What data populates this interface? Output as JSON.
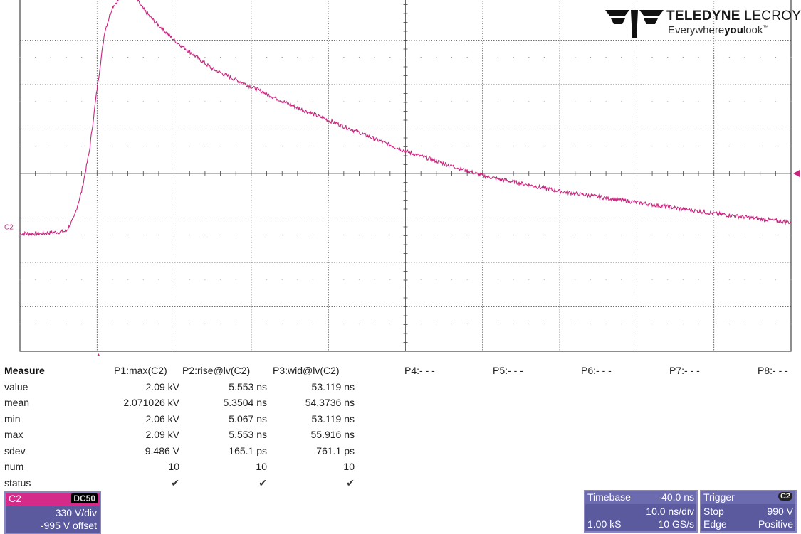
{
  "brand": {
    "name_bold": "TELEDYNE",
    "name_light": "LECROY",
    "tagline_pre": "Everywhere",
    "tagline_bold": "you",
    "tagline_post": "look",
    "tagline_mark": "™"
  },
  "screen": {
    "channel_marker": "C2",
    "trace_color": "#c8257f",
    "grid_color": "#444444"
  },
  "measure": {
    "title": "Measure",
    "params": [
      "P1:max(C2)",
      "P2:rise@lv(C2)",
      "P3:wid@lv(C2)",
      "P4:- - -",
      "P5:- - -",
      "P6:- - -",
      "P7:- - -",
      "P8:- - -"
    ],
    "row_labels": [
      "value",
      "mean",
      "min",
      "max",
      "sdev",
      "num",
      "status"
    ],
    "p1": [
      "2.09 kV",
      "2.071026 kV",
      "2.06 kV",
      "2.09 kV",
      "9.486 V",
      "10",
      "✔"
    ],
    "p2": [
      "5.553 ns",
      "5.3504 ns",
      "5.067 ns",
      "5.553 ns",
      "165.1 ps",
      "10",
      "✔"
    ],
    "p3": [
      "53.119 ns",
      "54.3736 ns",
      "53.119 ns",
      "55.916 ns",
      "761.1 ps",
      "10",
      "✔"
    ]
  },
  "channel_panel": {
    "name": "C2",
    "coupling": "DC50",
    "vdiv": "330 V/div",
    "offset": "-995 V offset"
  },
  "timebase_panel": {
    "label": "Timebase",
    "delay": "-40.0 ns",
    "tdiv": "10.0 ns/div",
    "samples": "1.00 kS",
    "rate": "10 GS/s"
  },
  "trigger_panel": {
    "label": "Trigger",
    "source": "C2",
    "mode": "Stop",
    "level": "990 V",
    "type": "Edge",
    "slope": "Positive"
  },
  "chart_data": {
    "type": "line",
    "x_divisions": 10,
    "y_divisions": 8,
    "series": [
      {
        "x": [
          0,
          0.3,
          0.6,
          0.7,
          0.8,
          0.9,
          1.0,
          1.1,
          1.2,
          1.3,
          1.4,
          1.5,
          1.6,
          1.7,
          2.0,
          2.5,
          3.0,
          3.5,
          4.0,
          5.0,
          6.0,
          7.0,
          8.0,
          9.0,
          10.0
        ],
        "y": [
          -1.35,
          -1.35,
          -1.3,
          -1.0,
          -0.4,
          0.5,
          1.9,
          3.2,
          3.75,
          3.95,
          4.1,
          3.95,
          3.7,
          3.5,
          3.0,
          2.35,
          1.95,
          1.55,
          1.2,
          0.5,
          -0.05,
          -0.4,
          -0.65,
          -0.9,
          -1.1
        ]
      }
    ]
  }
}
